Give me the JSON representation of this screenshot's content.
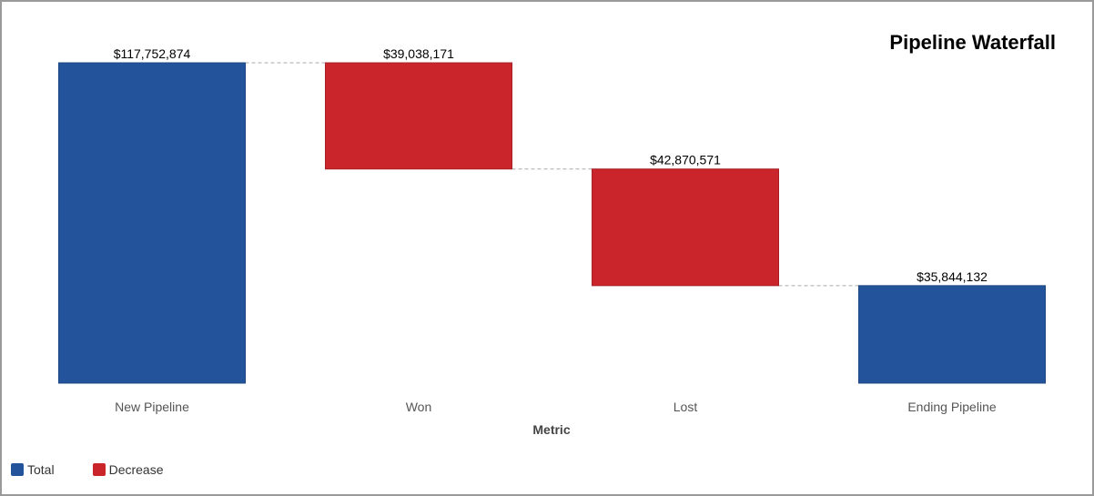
{
  "chart_data": {
    "type": "bar",
    "subtype": "waterfall",
    "title": "Pipeline Waterfall",
    "xlabel": "Metric",
    "ylabel": "",
    "categories": [
      "New Pipeline",
      "Won",
      "Lost",
      "Ending Pipeline"
    ],
    "values": [
      117752874,
      39038171,
      42870571,
      35844132
    ],
    "kinds": [
      "total",
      "decrease",
      "decrease",
      "total"
    ],
    "data_labels": [
      "$117,752,874",
      "$39,038,171",
      "$42,870,571",
      "$35,844,132"
    ],
    "ylim": [
      0,
      117752874
    ],
    "grid": false,
    "legend_position": "bottom-left",
    "legend": [
      {
        "key": "total",
        "label": "Total",
        "color": "#23549b"
      },
      {
        "key": "decrease",
        "label": "Decrease",
        "color": "#c9252b"
      }
    ],
    "colors": {
      "total": "#23549b",
      "decrease": "#c9252b",
      "connector": "#aaaaaa"
    }
  }
}
